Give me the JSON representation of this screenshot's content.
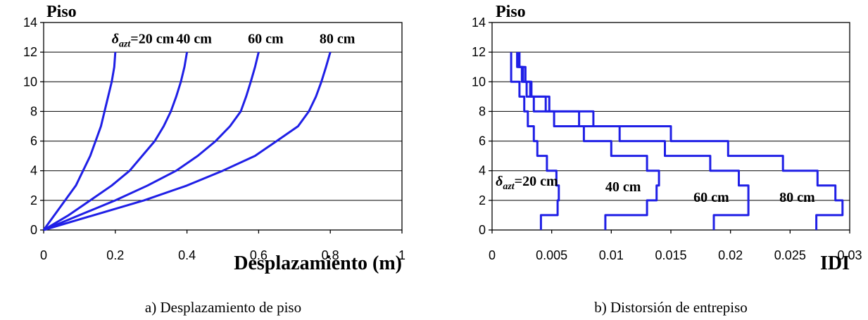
{
  "colors": {
    "series": "#1f1fe6",
    "grid": "#000000"
  },
  "chart_data": [
    {
      "type": "line",
      "ylabel": "Piso",
      "xlabel": "Desplazamiento (m)",
      "caption": "a) Desplazamiento de piso",
      "xlim": [
        0,
        1
      ],
      "ylim": [
        0,
        14
      ],
      "xticks": [
        "0",
        "0.2",
        "0.4",
        "0.6",
        "0.8",
        "1"
      ],
      "yticks": [
        "0",
        "2",
        "4",
        "6",
        "8",
        "10",
        "12",
        "14"
      ],
      "grid": true,
      "series_labels": [
        {
          "sym": "δ",
          "sub": "azt",
          "rest": "=20 cm",
          "at": [
            0.19,
            12.6
          ]
        },
        {
          "sym": "",
          "sub": "",
          "rest": "40 cm",
          "at": [
            0.37,
            12.6
          ]
        },
        {
          "sym": "",
          "sub": "",
          "rest": "60 cm",
          "at": [
            0.57,
            12.6
          ]
        },
        {
          "sym": "",
          "sub": "",
          "rest": "80 cm",
          "at": [
            0.77,
            12.6
          ]
        }
      ],
      "series": [
        {
          "x": [
            0,
            0.03,
            0.06,
            0.09,
            0.11,
            0.13,
            0.145,
            0.16,
            0.17,
            0.18,
            0.19,
            0.197,
            0.2
          ],
          "y": [
            0,
            1,
            2,
            3,
            4,
            5,
            6,
            7,
            8,
            9,
            10,
            11,
            12
          ]
        },
        {
          "x": [
            0,
            0.07,
            0.13,
            0.19,
            0.24,
            0.275,
            0.31,
            0.335,
            0.355,
            0.37,
            0.383,
            0.393,
            0.4
          ],
          "y": [
            0,
            1,
            2,
            3,
            4,
            5,
            6,
            7,
            8,
            9,
            10,
            11,
            12
          ]
        },
        {
          "x": [
            0,
            0.1,
            0.2,
            0.29,
            0.37,
            0.43,
            0.48,
            0.52,
            0.55,
            0.565,
            0.578,
            0.59,
            0.6
          ],
          "y": [
            0,
            1,
            2,
            3,
            4,
            5,
            6,
            7,
            8,
            9,
            10,
            11,
            12
          ]
        },
        {
          "x": [
            0,
            0.14,
            0.28,
            0.4,
            0.5,
            0.59,
            0.65,
            0.71,
            0.74,
            0.76,
            0.775,
            0.788,
            0.8
          ],
          "y": [
            0,
            1,
            2,
            3,
            4,
            5,
            6,
            7,
            8,
            9,
            10,
            11,
            12
          ]
        }
      ]
    },
    {
      "type": "line",
      "ylabel": "Piso",
      "xlabel": "IDI",
      "caption": "b) Distorsión de entrepiso",
      "xlim": [
        0,
        0.03
      ],
      "ylim": [
        0,
        14
      ],
      "xticks": [
        "0",
        "0.005",
        "0.01",
        "0.015",
        "0.02",
        "0.025",
        "0.03"
      ],
      "yticks": [
        "0",
        "2",
        "4",
        "6",
        "8",
        "10",
        "12",
        "14"
      ],
      "grid": true,
      "series_labels": [
        {
          "sym": "δ",
          "sub": "azt",
          "rest": "=20 cm",
          "at": [
            0.0003,
            3.0
          ]
        },
        {
          "sym": "",
          "sub": "",
          "rest": "40 cm",
          "at": [
            0.0095,
            2.6
          ]
        },
        {
          "sym": "",
          "sub": "",
          "rest": "60 cm",
          "at": [
            0.0169,
            1.9
          ]
        },
        {
          "sym": "",
          "sub": "",
          "rest": "80 cm",
          "at": [
            0.0241,
            1.9
          ]
        }
      ],
      "series": [
        {
          "x": [
            0.0041,
            0.0041,
            0.0055,
            0.0055,
            0.0056,
            0.0056,
            0.0054,
            0.0054,
            0.0046,
            0.0046,
            0.0038,
            0.0038,
            0.0035,
            0.0035,
            0.003,
            0.003,
            0.0027,
            0.0027,
            0.0023,
            0.0023,
            0.0016,
            0.0016
          ],
          "y": [
            0,
            1,
            1,
            2,
            2,
            3,
            3,
            4,
            4,
            5,
            5,
            6,
            6,
            7,
            7,
            8,
            8,
            9,
            9,
            10,
            10,
            12
          ]
        },
        {
          "x": [
            0.0095,
            0.0095,
            0.013,
            0.013,
            0.0138,
            0.0138,
            0.014,
            0.014,
            0.013,
            0.013,
            0.01,
            0.01,
            0.0077,
            0.0077,
            0.0052,
            0.0052,
            0.0035,
            0.0035,
            0.0029,
            0.0029,
            0.0025,
            0.0025,
            0.0021,
            0.0021
          ],
          "y": [
            0,
            1,
            1,
            2,
            2,
            3,
            3,
            4,
            4,
            5,
            5,
            6,
            6,
            7,
            7,
            8,
            8,
            9,
            9,
            10,
            10,
            11,
            11,
            12
          ]
        },
        {
          "x": [
            0.0186,
            0.0186,
            0.0215,
            0.0215,
            0.0215,
            0.0215,
            0.0207,
            0.0207,
            0.0183,
            0.0183,
            0.0145,
            0.0145,
            0.0107,
            0.0107,
            0.0073,
            0.0073,
            0.0045,
            0.0045,
            0.0033,
            0.0033,
            0.0028,
            0.0028,
            0.0023,
            0.0023
          ],
          "y": [
            0,
            1,
            1,
            2,
            2,
            3,
            3,
            4,
            4,
            5,
            5,
            6,
            6,
            7,
            7,
            8,
            8,
            9,
            9,
            10,
            10,
            11,
            11,
            12
          ]
        },
        {
          "x": [
            0.0272,
            0.0272,
            0.0294,
            0.0294,
            0.0288,
            0.0288,
            0.0273,
            0.0273,
            0.0244,
            0.0244,
            0.0198,
            0.0198,
            0.015,
            0.015,
            0.0085,
            0.0085,
            0.0048,
            0.0048,
            0.0032,
            0.0032,
            0.0026,
            0.0026,
            0.0022,
            0.0022
          ],
          "y": [
            0,
            1,
            1,
            2,
            2,
            3,
            3,
            4,
            4,
            5,
            5,
            6,
            6,
            7,
            7,
            8,
            8,
            9,
            9,
            10,
            10,
            11,
            11,
            12
          ]
        }
      ]
    }
  ]
}
